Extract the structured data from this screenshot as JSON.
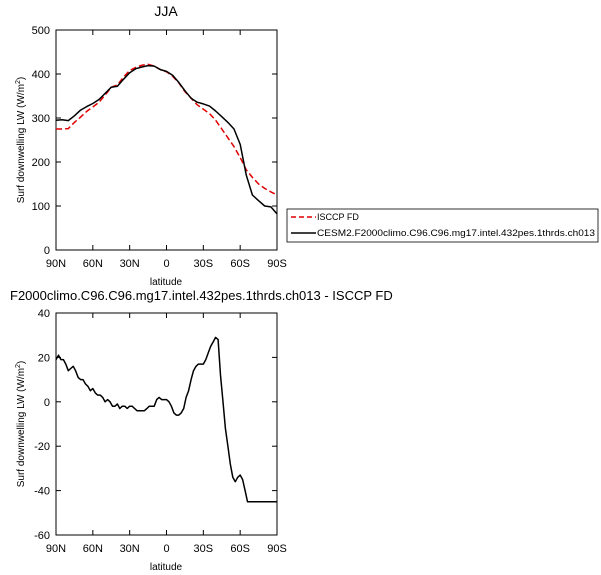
{
  "chart_data": [
    {
      "type": "line",
      "title": "JJA",
      "xlabel": "latitude",
      "ylabel": "Surf downwelling LW (W/m",
      "ylabel_superscript": "2",
      "ylabel_suffix": ")",
      "xlim": [
        90,
        -90
      ],
      "ylim": [
        0,
        500
      ],
      "xticks": [
        90,
        60,
        30,
        0,
        -30,
        -60,
        -90
      ],
      "xtick_labels": [
        "90N",
        "60N",
        "30N",
        "0",
        "30S",
        "60S",
        "90S"
      ],
      "yticks": [
        0,
        100,
        200,
        300,
        400,
        500
      ],
      "ytick_labels": [
        "0",
        "100",
        "200",
        "300",
        "400",
        "500"
      ],
      "grid": false,
      "legend_position": "right",
      "series": [
        {
          "name": "ISCCP FD",
          "color": "#e00000",
          "dash": "dashed",
          "x": [
            90,
            85,
            80,
            75,
            70,
            65,
            60,
            55,
            50,
            45,
            40,
            35,
            30,
            25,
            20,
            15,
            10,
            5,
            0,
            -5,
            -10,
            -15,
            -20,
            -25,
            -30,
            -35,
            -40,
            -45,
            -50,
            -55,
            -60,
            -65,
            -70,
            -75,
            -80,
            -85,
            -90
          ],
          "values": [
            275,
            275,
            276,
            290,
            302,
            315,
            325,
            336,
            352,
            370,
            375,
            393,
            408,
            415,
            420,
            422,
            418,
            410,
            405,
            395,
            380,
            360,
            345,
            330,
            320,
            310,
            295,
            275,
            255,
            235,
            210,
            182,
            165,
            150,
            140,
            132,
            125
          ]
        },
        {
          "name": "CESM2.F2000climo.C96.C96.mg17.intel.432pes.1thrds.ch013",
          "color": "#000000",
          "dash": "solid",
          "x": [
            90,
            85,
            80,
            75,
            70,
            65,
            60,
            55,
            50,
            45,
            40,
            35,
            30,
            25,
            20,
            15,
            10,
            5,
            0,
            -5,
            -10,
            -15,
            -20,
            -25,
            -30,
            -35,
            -40,
            -45,
            -50,
            -55,
            -60,
            -65,
            -70,
            -75,
            -80,
            -85,
            -90
          ],
          "values": [
            295,
            296,
            294,
            305,
            318,
            326,
            333,
            342,
            356,
            370,
            372,
            388,
            403,
            412,
            416,
            419,
            418,
            410,
            406,
            397,
            381,
            362,
            345,
            336,
            332,
            327,
            316,
            303,
            290,
            275,
            240,
            170,
            125,
            112,
            100,
            98,
            82
          ]
        }
      ]
    },
    {
      "type": "line",
      "title": "F2000climo.C96.C96.mg17.intel.432pes.1thrds.ch013 - ISCCP FD",
      "xlabel": "latitude",
      "ylabel": "Surf downwelling LW (W/m",
      "ylabel_superscript": "2",
      "ylabel_suffix": ")",
      "xlim": [
        90,
        -90
      ],
      "ylim": [
        -60,
        40
      ],
      "xticks": [
        90,
        60,
        30,
        0,
        -30,
        -60,
        -90
      ],
      "xtick_labels": [
        "90N",
        "60N",
        "30N",
        "0",
        "30S",
        "60S",
        "90S"
      ],
      "yticks": [
        -60,
        -40,
        -20,
        0,
        20,
        40
      ],
      "ytick_labels": [
        "-60",
        "-40",
        "-20",
        "0",
        "20",
        "40"
      ],
      "grid": false,
      "series": [
        {
          "color": "#000000",
          "dash": "solid",
          "x": [
            90,
            88,
            86,
            84,
            82,
            80,
            78,
            76,
            74,
            72,
            70,
            68,
            66,
            64,
            62,
            60,
            58,
            56,
            54,
            52,
            50,
            48,
            46,
            44,
            42,
            40,
            38,
            36,
            34,
            32,
            30,
            28,
            26,
            24,
            22,
            20,
            18,
            16,
            14,
            12,
            10,
            8,
            6,
            4,
            2,
            0,
            -2,
            -4,
            -6,
            -8,
            -10,
            -12,
            -14,
            -16,
            -18,
            -20,
            -22,
            -24,
            -26,
            -28,
            -30,
            -32,
            -34,
            -36,
            -38,
            -40,
            -42,
            -44,
            -46,
            -48,
            -50,
            -52,
            -54,
            -56,
            -58,
            -60,
            -62,
            -64,
            -66,
            -68,
            -70,
            -72,
            -74,
            -76,
            -78,
            -80,
            -82,
            -84,
            -86,
            -88,
            -90
          ],
          "values": [
            19,
            21,
            19,
            19,
            17,
            14,
            15,
            16,
            14,
            11,
            10,
            10,
            8,
            7,
            5,
            6,
            4,
            3,
            3,
            2,
            0,
            1,
            0,
            -2,
            -2,
            -1,
            -3,
            -2,
            -2,
            -3,
            -2,
            -2,
            -3,
            -4,
            -4,
            -4,
            -4,
            -3,
            -2,
            -2,
            -2,
            1,
            2,
            1,
            1,
            1,
            0,
            -2,
            -5,
            -6,
            -6,
            -5,
            -3,
            2,
            5,
            10,
            14,
            16,
            17,
            17,
            17,
            19,
            22,
            25,
            27,
            29,
            28,
            12,
            0,
            -12,
            -20,
            -28,
            -34,
            -36,
            -34,
            -33,
            -35,
            -40,
            -45,
            -45,
            -45,
            -45,
            -45,
            -45,
            -45,
            -45,
            -45,
            -45,
            -45,
            -45,
            -45
          ]
        }
      ]
    }
  ]
}
